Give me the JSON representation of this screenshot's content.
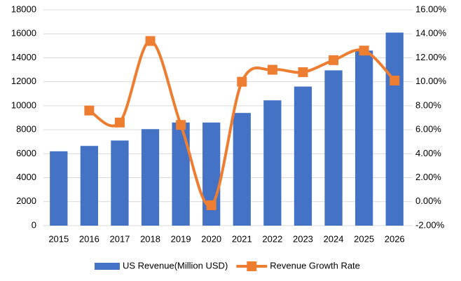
{
  "chart_data": {
    "type": "bar",
    "categories": [
      "2015",
      "2016",
      "2017",
      "2018",
      "2019",
      "2020",
      "2021",
      "2022",
      "2023",
      "2024",
      "2025",
      "2026"
    ],
    "series": [
      {
        "name": "US Revenue(Million USD)",
        "type": "bar",
        "color": "#4472c4",
        "values": [
          6200,
          6650,
          7100,
          8050,
          8600,
          8600,
          9400,
          10450,
          11600,
          12950,
          14600,
          16100
        ]
      },
      {
        "name": "Revenue Growth Rate",
        "type": "line",
        "axis": "y2",
        "color": "#ed7d31",
        "values": [
          null,
          7.6,
          6.6,
          13.4,
          6.4,
          -0.3,
          10.0,
          11.0,
          10.8,
          11.8,
          12.6,
          10.1
        ]
      }
    ],
    "ylim": [
      0,
      18000
    ],
    "yticks": [
      0,
      2000,
      4000,
      6000,
      8000,
      10000,
      12000,
      14000,
      16000,
      18000
    ],
    "y2lim": [
      -2,
      16
    ],
    "y2ticks": [
      {
        "value": -2,
        "label": "-2.00%"
      },
      {
        "value": 0,
        "label": "0.00%"
      },
      {
        "value": 2,
        "label": "2.00%"
      },
      {
        "value": 4,
        "label": "4.00%"
      },
      {
        "value": 6,
        "label": "6.00%"
      },
      {
        "value": 8,
        "label": "8.00%"
      },
      {
        "value": 10,
        "label": "10.00%"
      },
      {
        "value": 12,
        "label": "12.00%"
      },
      {
        "value": 14,
        "label": "14.00%"
      },
      {
        "value": 16,
        "label": "16.00%"
      }
    ],
    "grid": true,
    "legend": "bottom"
  }
}
